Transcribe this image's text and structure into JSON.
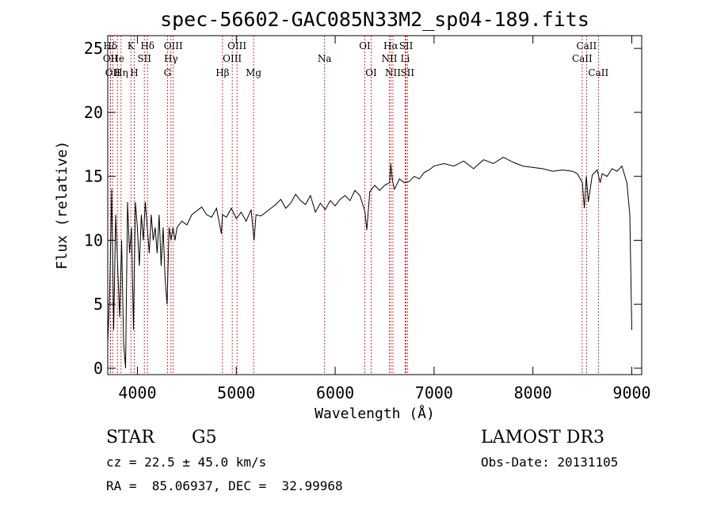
{
  "chart_data": {
    "type": "line",
    "title": "spec-56602-GAC085N33M2_sp04-189.fits",
    "xlabel": "Wavelength (Å)",
    "ylabel": "Flux (relative)",
    "xlim": [
      3700,
      9100
    ],
    "ylim": [
      -0.5,
      26
    ],
    "xticks": [
      4000,
      5000,
      6000,
      7000,
      8000,
      9000
    ],
    "yticks": [
      0,
      5,
      10,
      15,
      20,
      25
    ],
    "series": [
      {
        "name": "flux",
        "x": [
          3700,
          3720,
          3740,
          3760,
          3780,
          3800,
          3820,
          3840,
          3860,
          3880,
          3900,
          3920,
          3940,
          3960,
          3980,
          4000,
          4020,
          4040,
          4060,
          4080,
          4100,
          4120,
          4140,
          4160,
          4180,
          4200,
          4220,
          4240,
          4260,
          4280,
          4300,
          4320,
          4340,
          4360,
          4380,
          4400,
          4450,
          4500,
          4550,
          4600,
          4650,
          4700,
          4750,
          4800,
          4850,
          4860,
          4900,
          4950,
          5000,
          5050,
          5100,
          5150,
          5180,
          5200,
          5250,
          5300,
          5350,
          5400,
          5450,
          5500,
          5550,
          5600,
          5650,
          5700,
          5750,
          5800,
          5850,
          5900,
          5950,
          6000,
          6050,
          6100,
          6150,
          6200,
          6250,
          6300,
          6320,
          6350,
          6400,
          6450,
          6500,
          6550,
          6563,
          6580,
          6600,
          6650,
          6700,
          6750,
          6800,
          6850,
          6900,
          6950,
          7000,
          7100,
          7200,
          7300,
          7400,
          7500,
          7600,
          7700,
          7800,
          7900,
          8000,
          8100,
          8200,
          8300,
          8400,
          8450,
          8500,
          8520,
          8540,
          8560,
          8600,
          8650,
          8680,
          8700,
          8750,
          8800,
          8850,
          8900,
          8950,
          8980,
          9000
        ],
        "values": [
          2,
          6,
          14,
          3,
          12,
          8,
          4,
          10,
          2,
          0,
          13,
          9,
          11,
          3,
          13,
          11,
          8,
          12,
          10,
          13,
          11,
          9,
          12,
          10,
          11,
          9,
          12,
          8,
          11,
          7,
          5,
          11,
          10,
          11,
          10,
          11,
          11.5,
          11.2,
          12,
          12.3,
          12.6,
          12,
          11.8,
          12.5,
          10.5,
          12,
          11.8,
          12.5,
          11.7,
          12.2,
          11.5,
          12.4,
          10,
          12,
          11.9,
          12.2,
          12.5,
          12.8,
          13.2,
          12.5,
          12.9,
          13.6,
          13.1,
          12.8,
          13.5,
          12.2,
          12.9,
          12.4,
          13.1,
          12.7,
          13.2,
          13.5,
          13.1,
          13.9,
          13.5,
          12.3,
          10.8,
          13.8,
          14.3,
          13.9,
          14.3,
          14.5,
          16,
          14.6,
          14,
          14.8,
          14.5,
          14.6,
          15,
          14.8,
          15.3,
          15.5,
          15.8,
          16,
          15.8,
          16.2,
          15.6,
          16.3,
          16,
          16.5,
          16.1,
          15.8,
          15.7,
          15.6,
          15.4,
          15.5,
          15.4,
          15.2,
          14.5,
          12.5,
          15,
          13,
          15.1,
          15.5,
          14.5,
          15.2,
          15,
          15.6,
          15.4,
          15.8,
          14.5,
          12,
          3
        ]
      }
    ],
    "line_markers": [
      {
        "label": "Hδ",
        "wavelength": 3726,
        "row": 1
      },
      {
        "label": "OII",
        "wavelength": 3728,
        "row": 2
      },
      {
        "label": "OII",
        "wavelength": 3750,
        "row": 3
      },
      {
        "label": "He",
        "wavelength": 3798,
        "row": 2
      },
      {
        "label": "Hη",
        "wavelength": 3835,
        "row": 3
      },
      {
        "label": "K",
        "wavelength": 3934,
        "row": 1
      },
      {
        "label": "SII",
        "wavelength": 4070,
        "row": 2
      },
      {
        "label": "H",
        "wavelength": 3968,
        "row": 3
      },
      {
        "label": "Hδ",
        "wavelength": 4102,
        "row": 1
      },
      {
        "label": "OIII",
        "wavelength": 4363,
        "row": 1
      },
      {
        "label": "Hγ",
        "wavelength": 4340,
        "row": 2
      },
      {
        "label": "G",
        "wavelength": 4304,
        "row": 3
      },
      {
        "label": "Hβ",
        "wavelength": 4861,
        "row": 3
      },
      {
        "label": "OIII",
        "wavelength": 5007,
        "row": 1
      },
      {
        "label": "OIII",
        "wavelength": 4959,
        "row": 2
      },
      {
        "label": "Mg",
        "wavelength": 5175,
        "row": 3
      },
      {
        "label": "Na",
        "wavelength": 5893,
        "row": 2
      },
      {
        "label": "OI",
        "wavelength": 6300,
        "row": 1
      },
      {
        "label": "OI",
        "wavelength": 6364,
        "row": 3
      },
      {
        "label": "Hα",
        "wavelength": 6563,
        "row": 1
      },
      {
        "label": "NII",
        "wavelength": 6548,
        "row": 2
      },
      {
        "label": "NII",
        "wavelength": 6584,
        "row": 3
      },
      {
        "label": "SII",
        "wavelength": 6717,
        "row": 1
      },
      {
        "label": "Li",
        "wavelength": 6708,
        "row": 2
      },
      {
        "label": "SII",
        "wavelength": 6731,
        "row": 3
      },
      {
        "label": "CaII",
        "wavelength": 8542,
        "row": 1
      },
      {
        "label": "CaII",
        "wavelength": 8498,
        "row": 2
      },
      {
        "label": "CaII",
        "wavelength": 8662,
        "row": 3
      }
    ]
  },
  "info": {
    "class": "STAR",
    "subclass": "G5",
    "survey": "LAMOST DR3",
    "cz": "cz = 22.5 ± 45.0 km/s",
    "obs_date": "Obs-Date: 20131105",
    "coords": "RA =  85.06937, DEC =  32.99968"
  },
  "colors": {
    "spectrum": "#000000",
    "marker": "#cc0000"
  }
}
